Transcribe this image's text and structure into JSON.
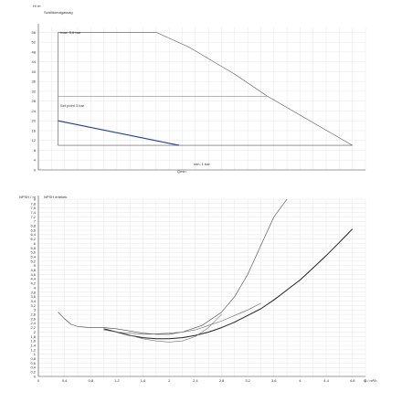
{
  "chart_data": [
    {
      "type": "line",
      "panel": "upper",
      "title": "Szállítómagasság",
      "ylabel": "H/ m",
      "xlabel": "Q / m³/h",
      "xlim": [
        0,
        5.0
      ],
      "ylim": [
        0,
        58
      ],
      "y_ticks": [
        0,
        4,
        8,
        12,
        16,
        20,
        24,
        28,
        32,
        36,
        40,
        44,
        48,
        52,
        56
      ],
      "annotations": {
        "max": "max. 5,6 bar",
        "set_point": "Set point 3 bar",
        "min": "min. 1 bar",
        "q_min": "Qmin"
      },
      "series": [
        {
          "name": "max. 5,6 bar",
          "color": "#555555",
          "x": [
            0.3,
            1.8,
            2.3,
            3.0,
            3.5,
            4.8
          ],
          "y": [
            56,
            56,
            50,
            39,
            30,
            10
          ]
        },
        {
          "name": "Set point 3 bar",
          "color": "#888888",
          "x": [
            0.3,
            3.5
          ],
          "y": [
            30,
            30
          ]
        },
        {
          "name": "min. 1 bar",
          "color": "#555555",
          "x": [
            0.3,
            4.8
          ],
          "y": [
            10,
            10
          ]
        },
        {
          "name": "Qmin",
          "color": "#1f3f8f",
          "x": [
            0.3,
            2.15
          ],
          "y": [
            20,
            10
          ]
        },
        {
          "name": "",
          "color": "#555555",
          "x": [
            0.3,
            0.3
          ],
          "y": [
            10,
            56
          ]
        }
      ]
    },
    {
      "type": "line",
      "panel": "lower",
      "title": "NPSH értékek",
      "ylabel": "NPSH / m",
      "xlabel": "Q / m³/h",
      "xlim": [
        0,
        5.0
      ],
      "ylim": [
        0,
        8.0
      ],
      "x_ticks": [
        0,
        0.4,
        0.8,
        1.2,
        1.6,
        2,
        2.4,
        2.8,
        3.2,
        3.6,
        4,
        4.4,
        4.8,
        5
      ],
      "y_ticks": [
        0,
        0.2,
        0.4,
        0.6,
        0.8,
        1,
        1.2,
        1.4,
        1.6,
        1.8,
        2,
        2.2,
        2.4,
        2.6,
        2.8,
        3,
        3.2,
        3.4,
        3.6,
        3.8,
        4,
        4.2,
        4.4,
        4.6,
        4.8,
        5,
        5.2,
        5.4,
        5.6,
        5.8,
        6,
        6.2,
        6.4,
        6.6,
        6.8,
        7,
        7.2,
        7.4,
        7.6,
        7.8,
        8
      ],
      "series": [
        {
          "name": "",
          "style": "thin",
          "color": "#444444",
          "x": [
            0.3,
            0.4,
            0.5,
            0.6,
            0.8,
            1.0,
            1.2,
            1.4,
            1.6,
            1.8,
            2.0,
            2.2,
            2.5,
            2.8,
            3.0,
            3.2,
            3.4,
            3.6,
            3.8
          ],
          "y": [
            2.9,
            2.6,
            2.35,
            2.25,
            2.2,
            2.2,
            2.15,
            2.05,
            1.95,
            1.9,
            1.9,
            2.0,
            2.3,
            2.9,
            3.6,
            4.6,
            5.9,
            7.2,
            8.0
          ]
        },
        {
          "name": "",
          "style": "bold",
          "color": "#222222",
          "x": [
            1.0,
            1.2,
            1.4,
            1.6,
            1.8,
            2.0,
            2.2,
            2.4,
            2.6,
            2.8,
            3.0,
            3.2,
            3.4,
            3.6,
            3.8,
            4.0,
            4.2,
            4.4,
            4.6,
            4.8
          ],
          "y": [
            2.15,
            2.0,
            1.85,
            1.75,
            1.7,
            1.7,
            1.75,
            1.85,
            2.0,
            2.2,
            2.45,
            2.75,
            3.05,
            3.45,
            3.9,
            4.35,
            4.9,
            5.45,
            6.05,
            6.65
          ]
        },
        {
          "name": "",
          "style": "thin",
          "color": "#666666",
          "x": [
            1.0,
            1.2,
            1.4,
            1.6,
            1.8,
            2.0,
            2.2,
            2.4,
            2.6,
            2.8,
            3.0,
            3.2,
            3.4
          ],
          "y": [
            2.1,
            2.0,
            1.95,
            1.9,
            1.92,
            1.95,
            2.0,
            2.1,
            2.3,
            2.5,
            2.75,
            3.0,
            3.3
          ]
        },
        {
          "name": "",
          "style": "thin",
          "color": "#777777",
          "x": [
            1.4,
            1.6,
            1.8,
            2.0,
            2.2,
            2.4,
            2.6,
            2.8
          ],
          "y": [
            1.85,
            1.7,
            1.6,
            1.55,
            1.6,
            1.8,
            2.2,
            2.8
          ]
        }
      ]
    }
  ]
}
